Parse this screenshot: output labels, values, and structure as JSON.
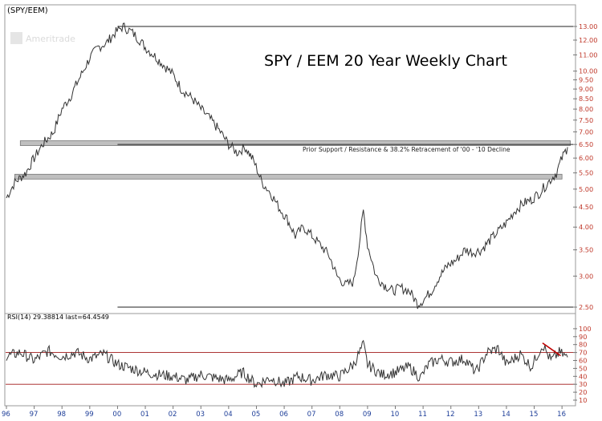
{
  "chart_data": [
    {
      "type": "line",
      "symbol": "(SPY/EEM)",
      "watermark": "Ameritrade",
      "title": "SPY / EEM 20 Year Weekly Chart",
      "annotation": "Prior Support / Resistance & 38.2% Retracement of '00 - '10 Decline",
      "y_scale": "log",
      "ylim": [
        2.35,
        13.6
      ],
      "xlim": [
        1996.0,
        2016.4
      ],
      "y_ticks": [
        "13.00",
        "12.00",
        "11.00",
        "10.00",
        "9.50",
        "9.00",
        "8.50",
        "8.00",
        "7.50",
        "7.00",
        "6.50",
        "6.00",
        "5.50",
        "5.00",
        "4.50",
        "4.00",
        "3.50",
        "3.00",
        "2.50"
      ],
      "x_ticks": [
        "96",
        "97",
        "98",
        "99",
        "00",
        "01",
        "02",
        "03",
        "04",
        "05",
        "06",
        "07",
        "08",
        "09",
        "10",
        "11",
        "12",
        "13",
        "14",
        "15",
        "16"
      ],
      "x_tick_years": [
        1996,
        1997,
        1998,
        1999,
        2000,
        2001,
        2002,
        2003,
        2004,
        2005,
        2006,
        2007,
        2008,
        2009,
        2010,
        2011,
        2012,
        2013,
        2014,
        2015,
        2016
      ],
      "horizontal_lines": [
        {
          "y": 13.0,
          "x_start": 2000.0,
          "x_end": 2016.4
        },
        {
          "y": 2.5,
          "x_start": 2000.0,
          "x_end": 2016.4
        },
        {
          "y": 6.5,
          "x_start": 2000.0,
          "x_end": 2016.4
        }
      ],
      "bands": [
        {
          "y_center": 6.55,
          "x_start": 1996.5,
          "x_end": 2016.3
        },
        {
          "y_center": 5.38,
          "x_start": 1996.3,
          "x_end": 2016.0
        }
      ],
      "series_color": "#333333",
      "band_color": "#bfbfbf",
      "key_points": [
        [
          1996.0,
          4.75
        ],
        [
          1996.3,
          5.2
        ],
        [
          1996.7,
          5.5
        ],
        [
          1997.0,
          6.0
        ],
        [
          1997.3,
          6.5
        ],
        [
          1997.7,
          7.0
        ],
        [
          1998.0,
          8.0
        ],
        [
          1998.3,
          8.6
        ],
        [
          1998.7,
          9.8
        ],
        [
          1999.0,
          10.8
        ],
        [
          1999.3,
          11.5
        ],
        [
          1999.6,
          11.8
        ],
        [
          1999.9,
          12.5
        ],
        [
          2000.2,
          13.0
        ],
        [
          2000.5,
          12.6
        ],
        [
          2000.8,
          12.0
        ],
        [
          2001.0,
          11.5
        ],
        [
          2001.3,
          11.0
        ],
        [
          2001.7,
          10.3
        ],
        [
          2002.0,
          9.8
        ],
        [
          2002.3,
          9.0
        ],
        [
          2002.7,
          8.5
        ],
        [
          2003.0,
          8.0
        ],
        [
          2003.3,
          7.6
        ],
        [
          2003.7,
          7.0
        ],
        [
          2004.0,
          6.5
        ],
        [
          2004.3,
          6.2
        ],
        [
          2004.6,
          6.4
        ],
        [
          2004.9,
          5.9
        ],
        [
          2005.2,
          5.2
        ],
        [
          2005.5,
          4.9
        ],
        [
          2005.8,
          4.5
        ],
        [
          2006.1,
          4.2
        ],
        [
          2006.4,
          3.8
        ],
        [
          2006.7,
          4.0
        ],
        [
          2007.0,
          3.8
        ],
        [
          2007.3,
          3.6
        ],
        [
          2007.6,
          3.4
        ],
        [
          2007.9,
          3.0
        ],
        [
          2008.2,
          2.85
        ],
        [
          2008.5,
          2.9
        ],
        [
          2008.7,
          3.6
        ],
        [
          2008.85,
          4.4
        ],
        [
          2009.0,
          3.6
        ],
        [
          2009.3,
          3.0
        ],
        [
          2009.6,
          2.85
        ],
        [
          2009.9,
          2.75
        ],
        [
          2010.2,
          2.8
        ],
        [
          2010.5,
          2.75
        ],
        [
          2010.8,
          2.55
        ],
        [
          2011.0,
          2.6
        ],
        [
          2011.3,
          2.75
        ],
        [
          2011.6,
          3.0
        ],
        [
          2011.9,
          3.2
        ],
        [
          2012.2,
          3.3
        ],
        [
          2012.5,
          3.5
        ],
        [
          2012.8,
          3.45
        ],
        [
          2013.1,
          3.5
        ],
        [
          2013.4,
          3.7
        ],
        [
          2013.7,
          3.9
        ],
        [
          2014.0,
          4.1
        ],
        [
          2014.3,
          4.4
        ],
        [
          2014.6,
          4.6
        ],
        [
          2014.9,
          4.7
        ],
        [
          2015.2,
          4.9
        ],
        [
          2015.5,
          5.2
        ],
        [
          2015.8,
          5.5
        ],
        [
          2016.0,
          6.0
        ],
        [
          2016.2,
          6.4
        ]
      ],
      "rsi": {
        "label": "RSI(14) 29.38814 last=64.4549",
        "ylim": [
          10,
          110
        ],
        "ticks": [
          "100",
          "90",
          "80",
          "70",
          "60",
          "50",
          "40",
          "30",
          "20",
          "10"
        ],
        "tick_values": [
          100,
          90,
          80,
          70,
          60,
          50,
          40,
          30,
          20,
          10
        ],
        "levels": [
          70,
          30
        ],
        "level_color": "#a01818",
        "trendline": {
          "points": [
            [
              2015.3,
              82
            ],
            [
              2015.95,
              66
            ]
          ],
          "color": "#c00000"
        },
        "key_points": [
          [
            1996.0,
            65
          ],
          [
            1996.5,
            70
          ],
          [
            1997.0,
            60
          ],
          [
            1997.5,
            72
          ],
          [
            1998.0,
            65
          ],
          [
            1998.5,
            70
          ],
          [
            1999.0,
            62
          ],
          [
            1999.5,
            68
          ],
          [
            2000.0,
            55
          ],
          [
            2000.5,
            50
          ],
          [
            2001.0,
            45
          ],
          [
            2001.5,
            42
          ],
          [
            2002.0,
            40
          ],
          [
            2002.5,
            35
          ],
          [
            2003.0,
            42
          ],
          [
            2003.5,
            38
          ],
          [
            2004.0,
            35
          ],
          [
            2004.5,
            45
          ],
          [
            2005.0,
            30
          ],
          [
            2005.5,
            38
          ],
          [
            2006.0,
            30
          ],
          [
            2006.5,
            40
          ],
          [
            2007.0,
            35
          ],
          [
            2007.5,
            42
          ],
          [
            2008.0,
            40
          ],
          [
            2008.5,
            55
          ],
          [
            2008.85,
            80
          ],
          [
            2009.0,
            55
          ],
          [
            2009.5,
            42
          ],
          [
            2010.0,
            45
          ],
          [
            2010.5,
            52
          ],
          [
            2010.9,
            38
          ],
          [
            2011.2,
            55
          ],
          [
            2011.6,
            62
          ],
          [
            2012.0,
            58
          ],
          [
            2012.5,
            62
          ],
          [
            2012.9,
            45
          ],
          [
            2013.3,
            70
          ],
          [
            2013.7,
            75
          ],
          [
            2014.0,
            55
          ],
          [
            2014.5,
            68
          ],
          [
            2014.9,
            52
          ],
          [
            2015.3,
            80
          ],
          [
            2015.6,
            60
          ],
          [
            2015.9,
            70
          ],
          [
            2016.2,
            64
          ]
        ]
      }
    }
  ]
}
